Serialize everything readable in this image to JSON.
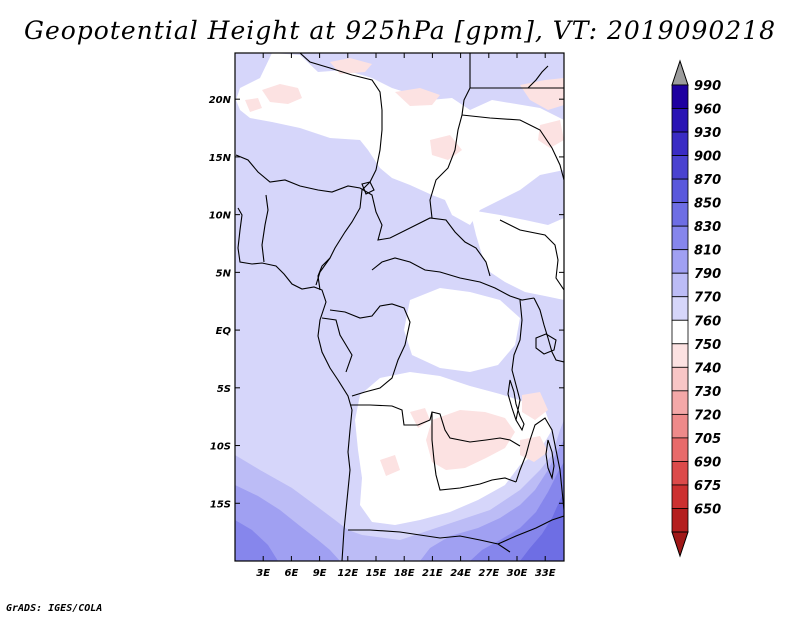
{
  "title": "Geopotential Height at 925hPa [gpm], VT: 2019090218",
  "credit": "GrADS: IGES/COLA",
  "chart_data": {
    "type": "contour-map",
    "variable": "Geopotential Height",
    "level": "925hPa",
    "units": "gpm",
    "valid_time": "2019090218",
    "region": "Central Africa",
    "lon_range_deg": [
      0,
      35
    ],
    "lat_range_deg": [
      -20,
      24
    ],
    "lat_ticks": [
      {
        "value": 20,
        "label": "20N"
      },
      {
        "value": 15,
        "label": "15N"
      },
      {
        "value": 10,
        "label": "10N"
      },
      {
        "value": 5,
        "label": "5N"
      },
      {
        "value": 0,
        "label": "EQ"
      },
      {
        "value": -5,
        "label": "5S"
      },
      {
        "value": -10,
        "label": "10S"
      },
      {
        "value": -15,
        "label": "15S"
      }
    ],
    "lon_ticks": [
      {
        "value": 3,
        "label": "3E"
      },
      {
        "value": 6,
        "label": "6E"
      },
      {
        "value": 9,
        "label": "9E"
      },
      {
        "value": 12,
        "label": "12E"
      },
      {
        "value": 15,
        "label": "15E"
      },
      {
        "value": 18,
        "label": "18E"
      },
      {
        "value": 21,
        "label": "21E"
      },
      {
        "value": 24,
        "label": "24E"
      },
      {
        "value": 27,
        "label": "27E"
      },
      {
        "value": 30,
        "label": "30E"
      },
      {
        "value": 33,
        "label": "33E"
      }
    ],
    "colorbar": {
      "labels": [
        "990",
        "960",
        "930",
        "900",
        "870",
        "850",
        "830",
        "810",
        "790",
        "770",
        "760",
        "750",
        "740",
        "730",
        "720",
        "705",
        "690",
        "675",
        "650"
      ],
      "colors": [
        "#1e00a0",
        "#2a14b4",
        "#3a2cc4",
        "#4a42d0",
        "#5a58dc",
        "#6e6ee4",
        "#8686ec",
        "#a0a0f2",
        "#bcbcf6",
        "#d6d6fa",
        "#ffffff",
        "#fce2e2",
        "#f8c6c6",
        "#f4a8a8",
        "#ee8a8a",
        "#e86a6a",
        "#dc4a4a",
        "#cc3030",
        "#b41e1e"
      ],
      "top_arrow_color": "#9c9c9c",
      "bottom_arrow_color": "#a01818"
    }
  }
}
